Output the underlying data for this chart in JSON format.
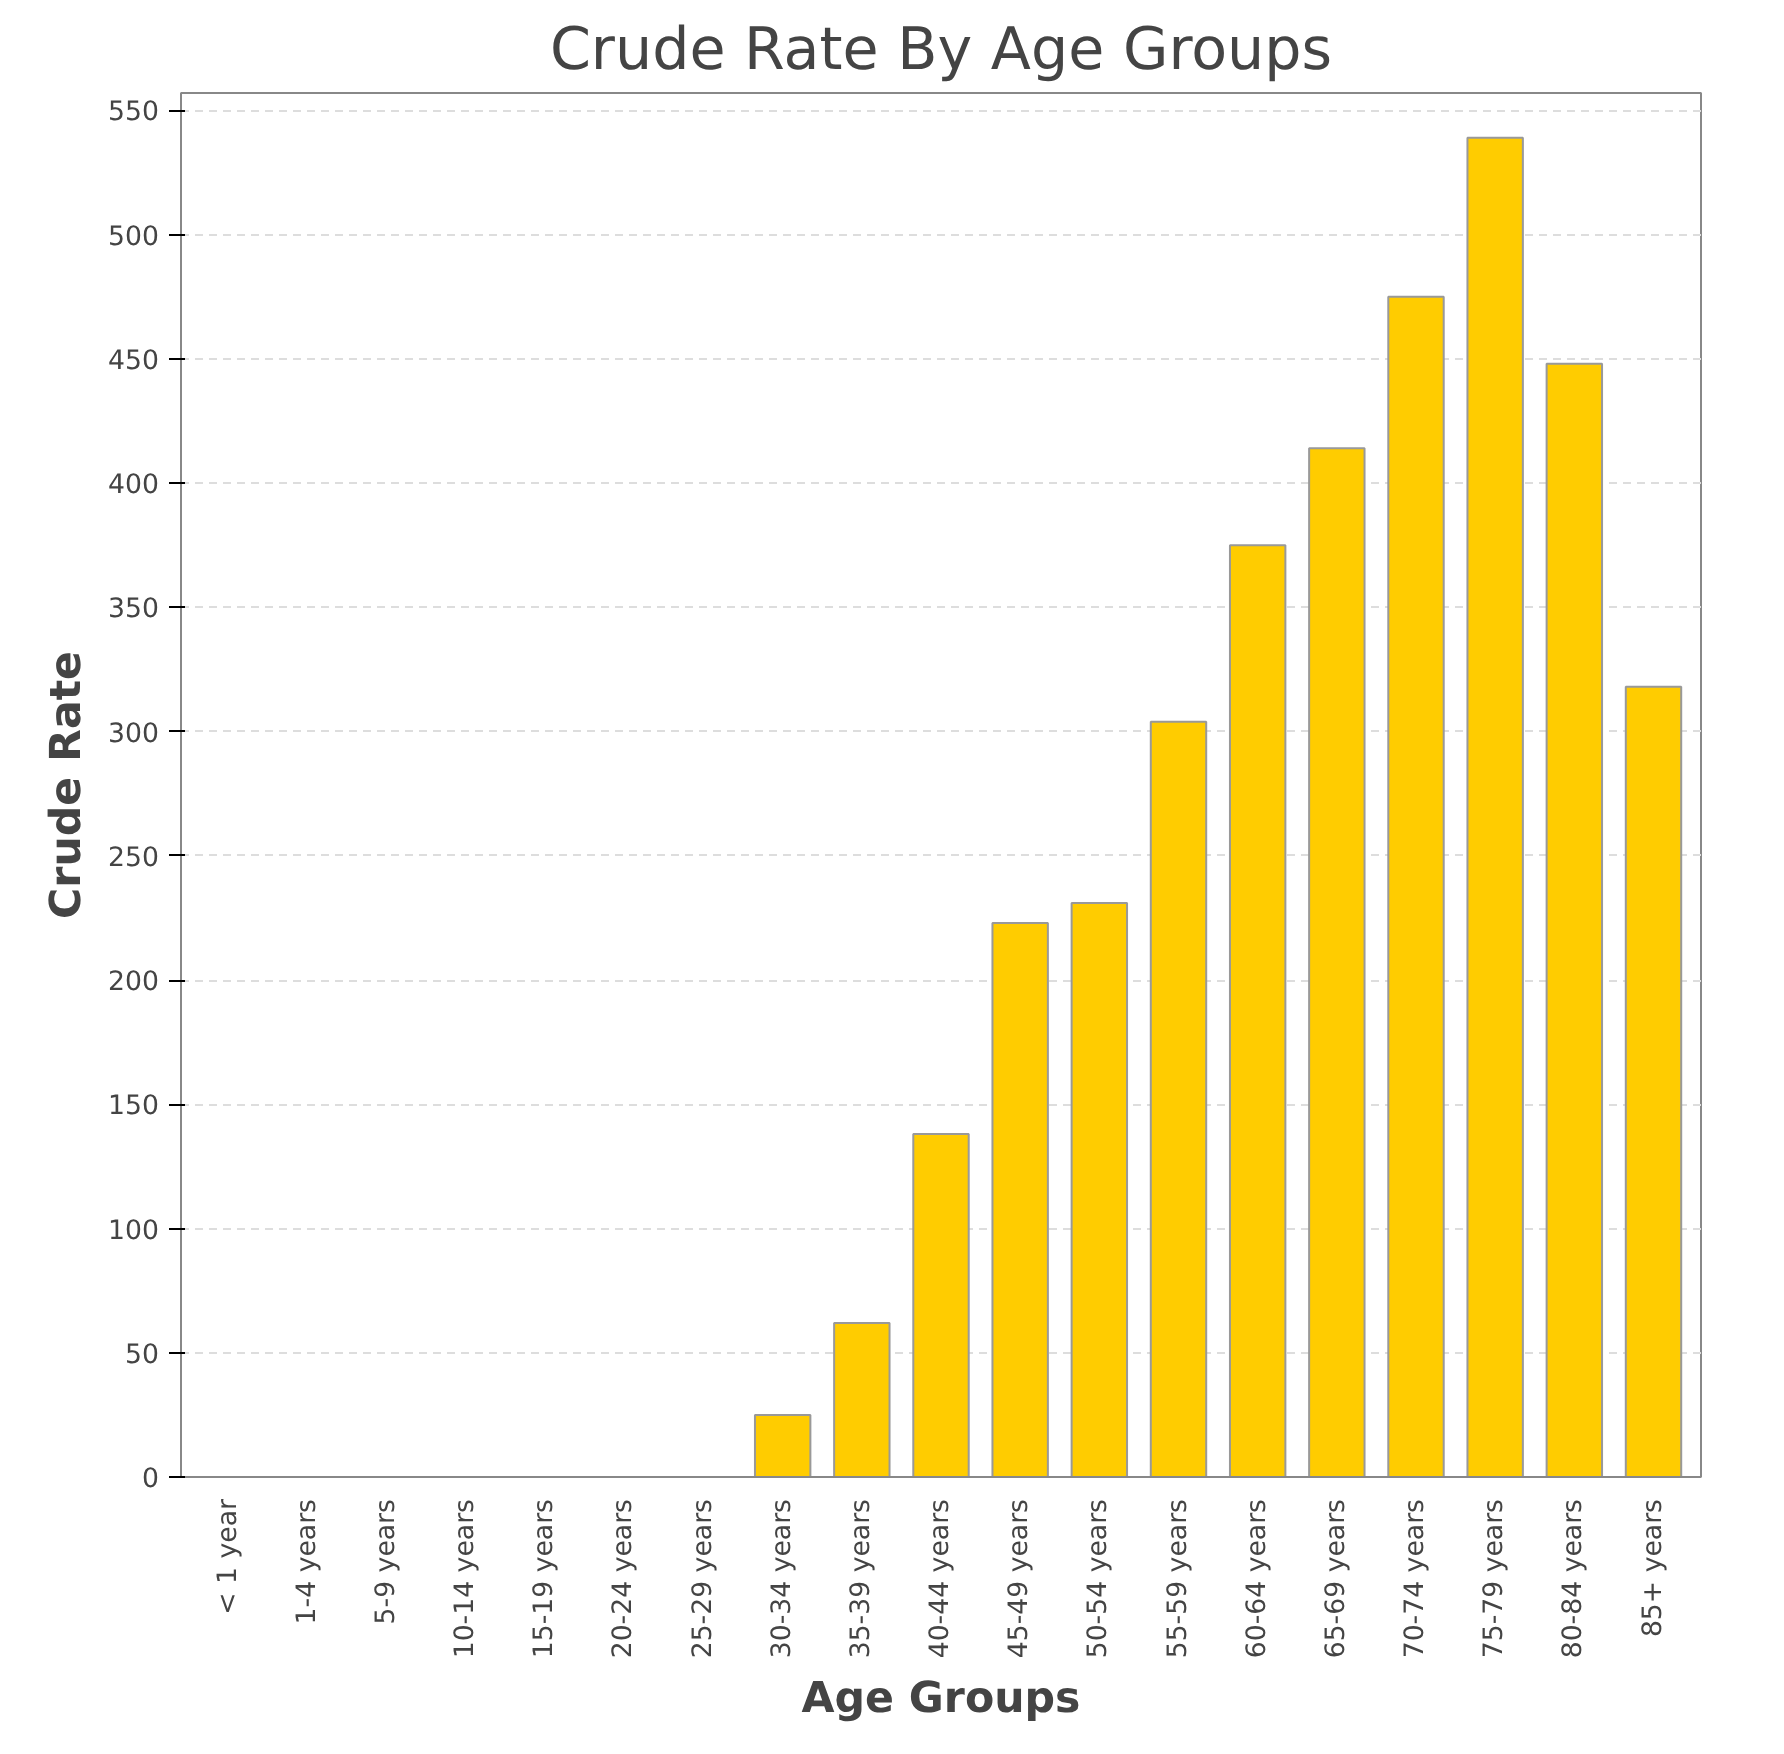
{
  "chart_data": {
    "type": "bar",
    "title": "Crude Rate By Age Groups",
    "xlabel": "Age Groups",
    "ylabel": "Crude Rate",
    "categories": [
      "< 1 year",
      "1-4 years",
      "5-9 years",
      "10-14 years",
      "15-19 years",
      "20-24 years",
      "25-29 years",
      "30-34 years",
      "35-39 years",
      "40-44 years",
      "45-49 years",
      "50-54 years",
      "55-59 years",
      "60-64 years",
      "65-69 years",
      "70-74 years",
      "75-79 years",
      "80-84 years",
      "85+ years"
    ],
    "values": [
      null,
      null,
      null,
      null,
      null,
      null,
      null,
      25,
      62,
      138,
      223,
      231,
      304,
      375,
      414,
      475,
      539,
      448,
      318
    ],
    "color": "#ffcc00",
    "ylim": [
      0,
      557
    ],
    "yticks": [
      0,
      50,
      100,
      150,
      200,
      250,
      300,
      350,
      400,
      450,
      500,
      550
    ],
    "grid": "y"
  }
}
